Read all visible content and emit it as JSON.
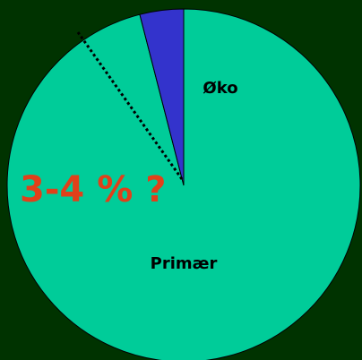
{
  "chart_data": {
    "type": "pie",
    "categories": [
      "Primær",
      "Øko"
    ],
    "values": [
      96,
      4
    ],
    "colors": [
      "#00cc99",
      "#3333cc"
    ],
    "annotations": [
      "3-4 % ?"
    ]
  }
}
